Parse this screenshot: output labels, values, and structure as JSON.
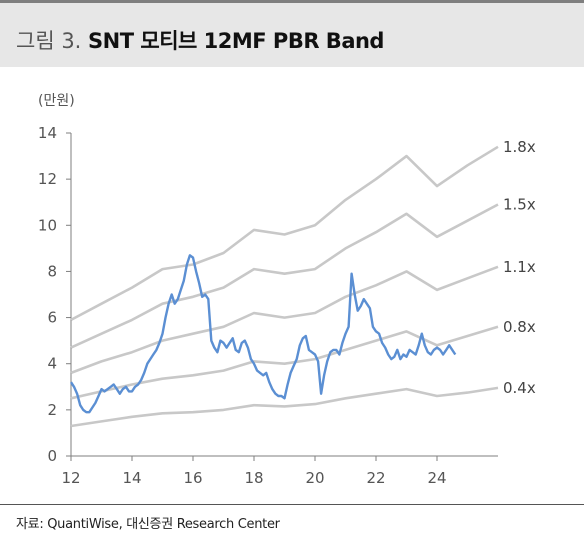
{
  "figure": {
    "number": "그림 3.",
    "title": "SNT 모티브 12MF PBR Band"
  },
  "source": "자료: QuantiWise, 대신증권 Research Center",
  "colors": {
    "price": "#5b8fd3",
    "band": "#c8c8c8",
    "axis": "#7f7f7f",
    "title_bg": "#e7e7e7"
  },
  "chart_data": {
    "type": "line",
    "unit_label": "(만원)",
    "xlim": [
      12,
      26
    ],
    "ylim": [
      0,
      14
    ],
    "x_ticks": [
      "12",
      "14",
      "16",
      "18",
      "20",
      "22",
      "24"
    ],
    "y_ticks": [
      "0",
      "2",
      "4",
      "6",
      "8",
      "10",
      "12",
      "14"
    ],
    "grid": false,
    "legend": "right-end labels",
    "series": [
      {
        "name": "1.8x",
        "kind": "band",
        "x": [
          12,
          13,
          14,
          15,
          16,
          17,
          18,
          19,
          20,
          21,
          22,
          23,
          24,
          25,
          26
        ],
        "y": [
          5.9,
          6.6,
          7.3,
          8.1,
          8.3,
          8.8,
          9.8,
          9.6,
          10.0,
          11.1,
          12.0,
          13.0,
          11.7,
          12.6,
          13.4
        ]
      },
      {
        "name": "1.5x",
        "kind": "band",
        "x": [
          12,
          13,
          14,
          15,
          16,
          17,
          18,
          19,
          20,
          21,
          22,
          23,
          24,
          25,
          26
        ],
        "y": [
          4.7,
          5.3,
          5.9,
          6.6,
          6.9,
          7.3,
          8.1,
          7.9,
          8.1,
          9.0,
          9.7,
          10.5,
          9.5,
          10.2,
          10.9
        ]
      },
      {
        "name": "1.1x",
        "kind": "band",
        "x": [
          12,
          13,
          14,
          15,
          16,
          17,
          18,
          19,
          20,
          21,
          22,
          23,
          24,
          25,
          26
        ],
        "y": [
          3.6,
          4.1,
          4.5,
          5.0,
          5.3,
          5.6,
          6.2,
          6.0,
          6.2,
          6.9,
          7.4,
          8.0,
          7.2,
          7.7,
          8.2
        ]
      },
      {
        "name": "0.8x",
        "kind": "band",
        "x": [
          12,
          13,
          14,
          15,
          16,
          17,
          18,
          19,
          20,
          21,
          22,
          23,
          24,
          25,
          26
        ],
        "y": [
          2.5,
          2.8,
          3.1,
          3.35,
          3.5,
          3.7,
          4.1,
          4.0,
          4.2,
          4.6,
          5.0,
          5.4,
          4.8,
          5.2,
          5.6
        ]
      },
      {
        "name": "0.4x",
        "kind": "band",
        "x": [
          12,
          13,
          14,
          15,
          16,
          17,
          18,
          19,
          20,
          21,
          22,
          23,
          24,
          25,
          26
        ],
        "y": [
          1.3,
          1.5,
          1.7,
          1.85,
          1.9,
          2.0,
          2.2,
          2.15,
          2.25,
          2.5,
          2.7,
          2.9,
          2.6,
          2.75,
          2.95
        ]
      },
      {
        "name": "",
        "kind": "price",
        "x": [
          12.0,
          12.1,
          12.2,
          12.3,
          12.4,
          12.5,
          12.6,
          12.7,
          12.8,
          12.9,
          13.0,
          13.1,
          13.2,
          13.3,
          13.4,
          13.5,
          13.6,
          13.7,
          13.8,
          13.9,
          14.0,
          14.1,
          14.2,
          14.3,
          14.4,
          14.5,
          14.6,
          14.7,
          14.8,
          14.9,
          15.0,
          15.1,
          15.2,
          15.3,
          15.4,
          15.5,
          15.6,
          15.7,
          15.8,
          15.9,
          16.0,
          16.1,
          16.2,
          16.3,
          16.4,
          16.5,
          16.6,
          16.7,
          16.8,
          16.9,
          17.0,
          17.1,
          17.2,
          17.3,
          17.4,
          17.5,
          17.6,
          17.7,
          17.8,
          17.9,
          18.0,
          18.1,
          18.2,
          18.3,
          18.4,
          18.5,
          18.6,
          18.7,
          18.8,
          18.9,
          19.0,
          19.1,
          19.2,
          19.3,
          19.4,
          19.5,
          19.6,
          19.7,
          19.8,
          19.9,
          20.0,
          20.1,
          20.2,
          20.3,
          20.4,
          20.5,
          20.6,
          20.7,
          20.8,
          20.9,
          21.0,
          21.1,
          21.2,
          21.3,
          21.4,
          21.5,
          21.6,
          21.7,
          21.8,
          21.9,
          22.0,
          22.1,
          22.2,
          22.3,
          22.4,
          22.5,
          22.6,
          22.7,
          22.8,
          22.9,
          23.0,
          23.1,
          23.2,
          23.3,
          23.4,
          23.5,
          23.6,
          23.7,
          23.8,
          23.9,
          24.0,
          24.1,
          24.2,
          24.3,
          24.4,
          24.6
        ],
        "y": [
          3.2,
          3.0,
          2.7,
          2.2,
          2.0,
          1.9,
          1.9,
          2.1,
          2.3,
          2.6,
          2.9,
          2.8,
          2.9,
          3.0,
          3.1,
          2.9,
          2.7,
          2.9,
          3.0,
          2.8,
          2.8,
          3.0,
          3.1,
          3.3,
          3.6,
          4.0,
          4.2,
          4.4,
          4.6,
          4.9,
          5.3,
          6.0,
          6.6,
          7.0,
          6.6,
          6.8,
          7.2,
          7.6,
          8.3,
          8.7,
          8.6,
          8.0,
          7.5,
          6.9,
          7.0,
          6.8,
          5.0,
          4.7,
          4.5,
          5.0,
          4.9,
          4.7,
          4.9,
          5.1,
          4.6,
          4.5,
          4.9,
          5.0,
          4.7,
          4.2,
          4.0,
          3.7,
          3.6,
          3.5,
          3.6,
          3.2,
          2.9,
          2.7,
          2.6,
          2.6,
          2.5,
          3.1,
          3.6,
          3.9,
          4.2,
          4.8,
          5.1,
          5.2,
          4.6,
          4.5,
          4.4,
          4.1,
          2.7,
          3.5,
          4.1,
          4.5,
          4.6,
          4.6,
          4.4,
          4.9,
          5.3,
          5.6,
          7.9,
          7.0,
          6.3,
          6.5,
          6.8,
          6.6,
          6.4,
          5.6,
          5.4,
          5.3,
          4.9,
          4.7,
          4.4,
          4.2,
          4.3,
          4.6,
          4.2,
          4.4,
          4.3,
          4.6,
          4.5,
          4.4,
          4.8,
          5.3,
          4.8,
          4.5,
          4.4,
          4.6,
          4.7,
          4.6,
          4.4,
          4.6,
          4.8,
          4.4
        ]
      }
    ]
  }
}
